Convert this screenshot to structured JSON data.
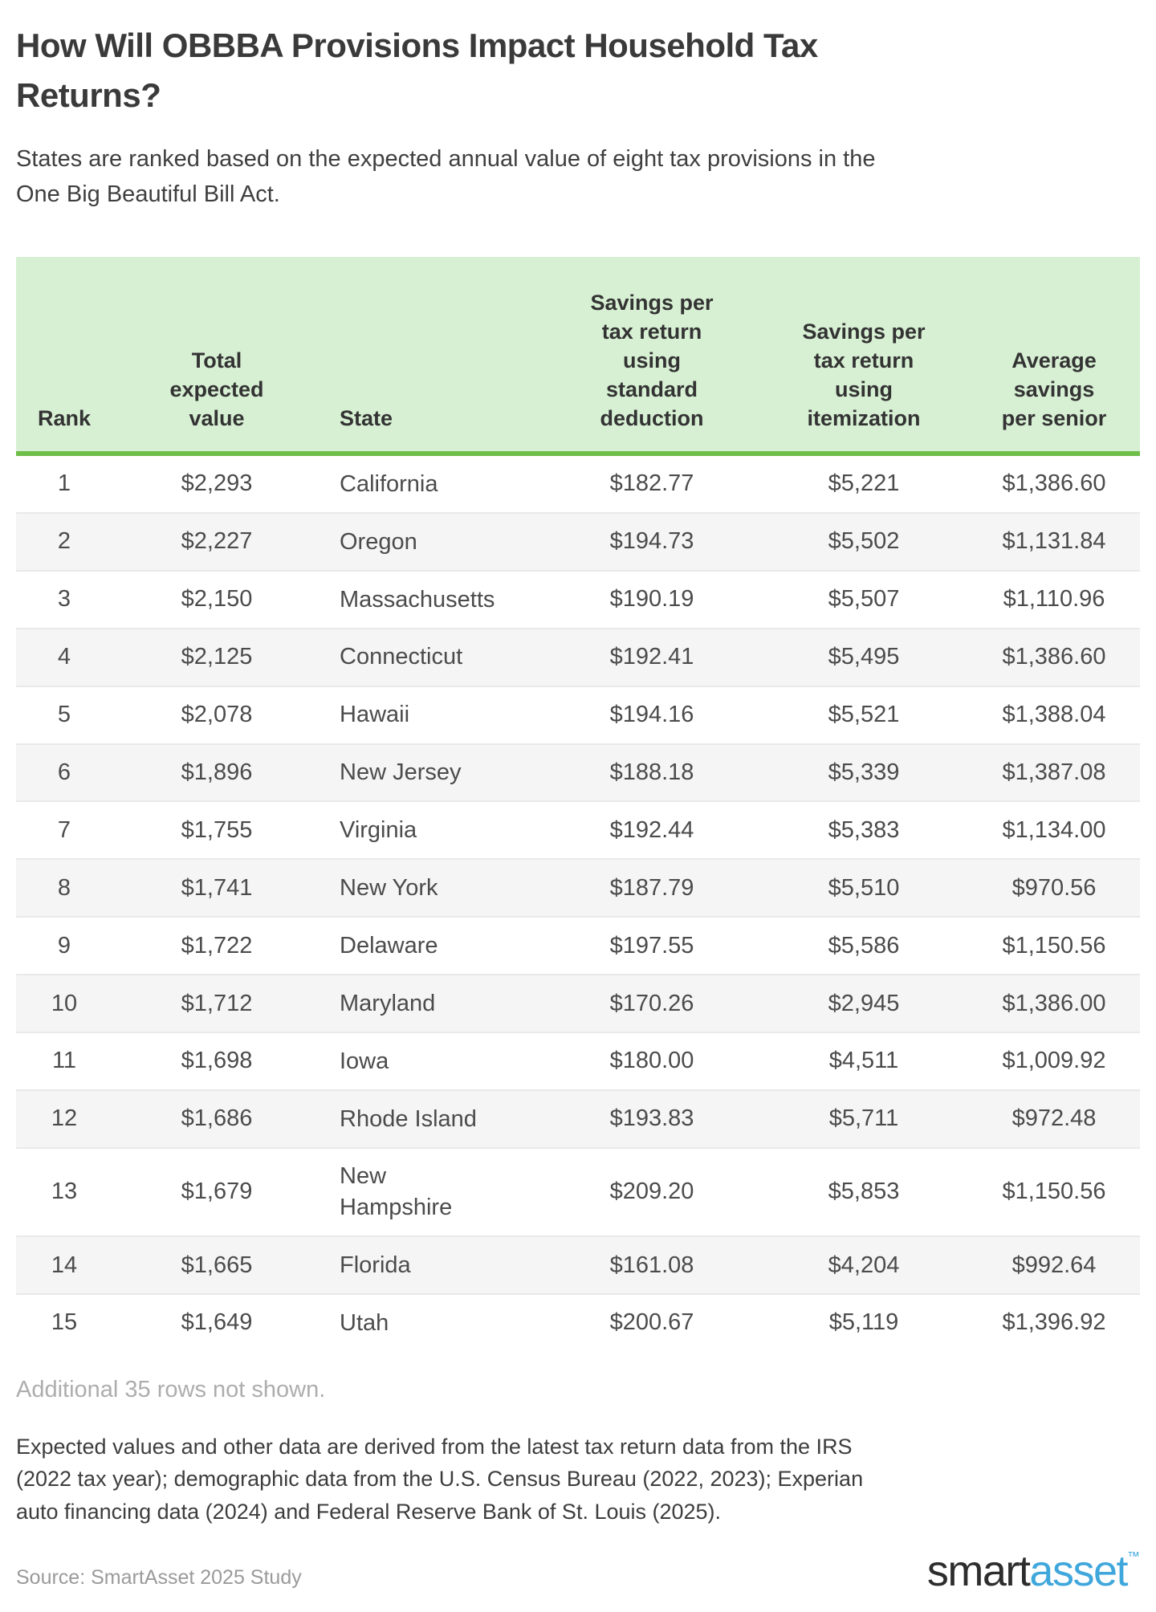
{
  "header": {
    "title": "How Will OBBBA Provisions Impact Household Tax\nReturns?",
    "subtitle": "States are ranked based on the expected annual value of eight tax provisions in the\nOne Big Beautiful Bill Act."
  },
  "table": {
    "columns": [
      {
        "key": "rank",
        "label": "Rank"
      },
      {
        "key": "total",
        "label": "Total\nexpected\nvalue"
      },
      {
        "key": "state",
        "label": "State"
      },
      {
        "key": "std",
        "label": "Savings per\ntax return\nusing\nstandard\ndeduction"
      },
      {
        "key": "item",
        "label": "Savings per\ntax return\nusing\nitemization"
      },
      {
        "key": "senior",
        "label": "Average\nsavings\nper senior"
      }
    ],
    "rows": [
      [
        "1",
        "$2,293",
        "California",
        "$182.77",
        "$5,221",
        "$1,386.60"
      ],
      [
        "2",
        "$2,227",
        "Oregon",
        "$194.73",
        "$5,502",
        "$1,131.84"
      ],
      [
        "3",
        "$2,150",
        "Massachusetts",
        "$190.19",
        "$5,507",
        "$1,110.96"
      ],
      [
        "4",
        "$2,125",
        "Connecticut",
        "$192.41",
        "$5,495",
        "$1,386.60"
      ],
      [
        "5",
        "$2,078",
        "Hawaii",
        "$194.16",
        "$5,521",
        "$1,388.04"
      ],
      [
        "6",
        "$1,896",
        "New Jersey",
        "$188.18",
        "$5,339",
        "$1,387.08"
      ],
      [
        "7",
        "$1,755",
        "Virginia",
        "$192.44",
        "$5,383",
        "$1,134.00"
      ],
      [
        "8",
        "$1,741",
        "New York",
        "$187.79",
        "$5,510",
        "$970.56"
      ],
      [
        "9",
        "$1,722",
        "Delaware",
        "$197.55",
        "$5,586",
        "$1,150.56"
      ],
      [
        "10",
        "$1,712",
        "Maryland",
        "$170.26",
        "$2,945",
        "$1,386.00"
      ],
      [
        "11",
        "$1,698",
        "Iowa",
        "$180.00",
        "$4,511",
        "$1,009.92"
      ],
      [
        "12",
        "$1,686",
        "Rhode Island",
        "$193.83",
        "$5,711",
        "$972.48"
      ],
      [
        "13",
        "$1,679",
        "New Hampshire",
        "$209.20",
        "$5,853",
        "$1,150.56"
      ],
      [
        "14",
        "$1,665",
        "Florida",
        "$161.08",
        "$4,204",
        "$992.64"
      ],
      [
        "15",
        "$1,649",
        "Utah",
        "$200.67",
        "$5,119",
        "$1,396.92"
      ]
    ]
  },
  "chart_data": {
    "type": "table",
    "title": "How Will OBBBA Provisions Impact Household Tax Returns?",
    "subtitle": "States are ranked based on the expected annual value of eight tax provisions in the One Big Beautiful Bill Act.",
    "columns": [
      "Rank",
      "Total expected value",
      "State",
      "Savings per tax return using standard deduction",
      "Savings per tax return using itemization",
      "Average savings per senior"
    ],
    "rows": [
      [
        1,
        2293,
        "California",
        182.77,
        5221,
        1386.6
      ],
      [
        2,
        2227,
        "Oregon",
        194.73,
        5502,
        1131.84
      ],
      [
        3,
        2150,
        "Massachusetts",
        190.19,
        5507,
        1110.96
      ],
      [
        4,
        2125,
        "Connecticut",
        192.41,
        5495,
        1386.6
      ],
      [
        5,
        2078,
        "Hawaii",
        194.16,
        5521,
        1388.04
      ],
      [
        6,
        1896,
        "New Jersey",
        188.18,
        5339,
        1387.08
      ],
      [
        7,
        1755,
        "Virginia",
        192.44,
        5383,
        1134.0
      ],
      [
        8,
        1741,
        "New York",
        187.79,
        5510,
        970.56
      ],
      [
        9,
        1722,
        "Delaware",
        197.55,
        5586,
        1150.56
      ],
      [
        10,
        1712,
        "Maryland",
        170.26,
        2945,
        1386.0
      ],
      [
        11,
        1698,
        "Iowa",
        180.0,
        4511,
        1009.92
      ],
      [
        12,
        1686,
        "Rhode Island",
        193.83,
        5711,
        972.48
      ],
      [
        13,
        1679,
        "New Hampshire",
        209.2,
        5853,
        1150.56
      ],
      [
        14,
        1665,
        "Florida",
        161.08,
        4204,
        992.64
      ],
      [
        15,
        1649,
        "Utah",
        200.67,
        5119,
        1396.92
      ]
    ],
    "units": "USD",
    "note": "Additional 35 rows not shown."
  },
  "footer": {
    "note": "Additional 35 rows not shown.",
    "methodology": "Expected values and other data are derived from the latest tax return data from the IRS\n(2022 tax year); demographic data from the U.S. Census Bureau (2022, 2023); Experian\nauto financing data (2024) and Federal Reserve Bank of St. Louis (2025).",
    "source": "Source: SmartAsset 2025 Study"
  },
  "logo": {
    "smart": "smart",
    "asset": "asset",
    "tm": "™"
  },
  "colors": {
    "header_background": "#d7f0d3",
    "header_border_green": "#6fbe4a",
    "row_stripe": "#f5f5f5",
    "row_divider": "#e9e9e9",
    "logo_blue": "#3fa7dc",
    "text_dark": "#3a3a3a",
    "text_muted": "#adadad"
  }
}
